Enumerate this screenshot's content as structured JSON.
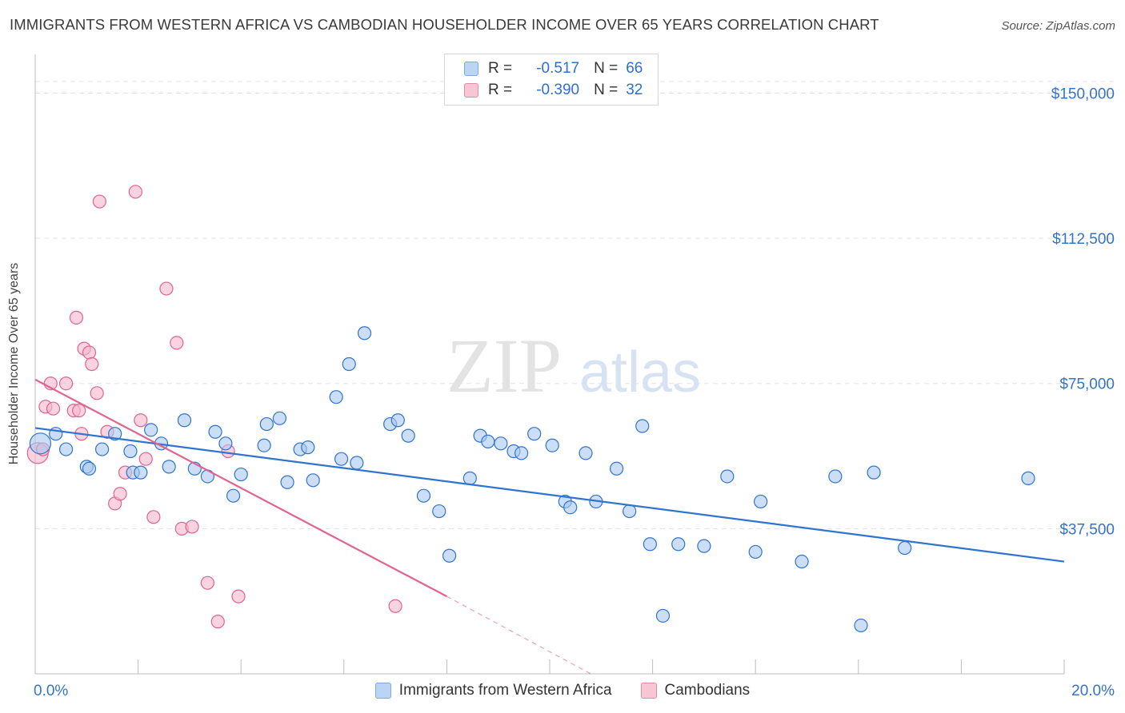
{
  "header": {
    "title": "IMMIGRANTS FROM WESTERN AFRICA VS CAMBODIAN HOUSEHOLDER INCOME OVER 65 YEARS CORRELATION CHART",
    "source": "Source: ZipAtlas.com"
  },
  "watermark": {
    "zip": "ZIP",
    "atlas": "atlas"
  },
  "stats": [
    {
      "r_label": "R =",
      "r_value": "-0.517",
      "n_label": "N =",
      "n_value": "66",
      "color": "#7ba9e6",
      "fill": "#bcd4f3"
    },
    {
      "r_label": "R =",
      "r_value": "-0.390",
      "n_label": "N =",
      "n_value": "32",
      "color": "#e88aa7",
      "fill": "#f7c6d5"
    }
  ],
  "legend": {
    "series1": "Immigrants from Western Africa",
    "series2": "Cambodians"
  },
  "chart_data": {
    "type": "scatter",
    "title": "IMMIGRANTS FROM WESTERN AFRICA VS CAMBODIAN HOUSEHOLDER INCOME OVER 65 YEARS CORRELATION CHART",
    "xlabel": "",
    "ylabel": "Householder Income Over 65 years",
    "xlim": [
      0,
      20
    ],
    "ylim": [
      0,
      160000
    ],
    "x_tick_labels": [
      "0.0%",
      "20.0%"
    ],
    "y_ticks": [
      37500,
      75000,
      112500,
      150000
    ],
    "y_tick_labels": [
      "$37,500",
      "$75,000",
      "$112,500",
      "$150,000"
    ],
    "grid": "horizontal dashed",
    "legend_position": "bottom-center",
    "colors": {
      "blue": "#2f74d0",
      "pink": "#e0648f",
      "blue_fill": "#a9c8f0",
      "pink_fill": "#f5b8cb",
      "tick_label": "#3573c9"
    },
    "series": [
      {
        "name": "Immigrants from Western Africa",
        "color": "#2f74d0",
        "x": [
          0.1,
          0.4,
          0.6,
          1.0,
          1.05,
          1.3,
          1.55,
          1.85,
          1.9,
          2.05,
          2.25,
          2.45,
          2.6,
          2.9,
          3.1,
          3.35,
          3.5,
          3.7,
          3.85,
          4.0,
          4.45,
          4.5,
          4.75,
          4.9,
          5.15,
          5.3,
          5.4,
          5.85,
          5.95,
          6.1,
          6.25,
          6.4,
          6.9,
          7.05,
          7.25,
          7.55,
          7.85,
          8.05,
          8.45,
          8.65,
          8.8,
          9.05,
          9.3,
          9.45,
          9.7,
          10.05,
          10.3,
          10.4,
          10.7,
          10.9,
          11.3,
          11.55,
          11.8,
          11.95,
          12.2,
          12.5,
          13.0,
          13.45,
          14.0,
          14.1,
          14.9,
          15.55,
          16.05,
          16.3,
          16.9,
          19.3
        ],
        "y": [
          59500,
          62000,
          58000,
          53500,
          53000,
          58000,
          62000,
          57500,
          52000,
          52000,
          63000,
          59500,
          53500,
          65500,
          53000,
          51000,
          62500,
          59500,
          46000,
          51500,
          59000,
          64500,
          66000,
          49500,
          58000,
          58500,
          50000,
          71500,
          55500,
          80000,
          54500,
          88000,
          64500,
          65500,
          61500,
          46000,
          42000,
          30500,
          50500,
          61500,
          60000,
          59500,
          57500,
          57000,
          62000,
          59000,
          44500,
          43000,
          57000,
          44500,
          53000,
          42000,
          64000,
          33500,
          15000,
          33500,
          33000,
          51000,
          31500,
          44500,
          29000,
          51000,
          12500,
          52000,
          32500,
          50500
        ]
      },
      {
        "name": "Cambodians",
        "color": "#e0648f",
        "x": [
          0.05,
          0.15,
          0.2,
          0.3,
          0.35,
          0.6,
          0.75,
          0.8,
          0.85,
          0.9,
          0.95,
          1.05,
          1.1,
          1.2,
          1.25,
          1.4,
          1.55,
          1.65,
          1.75,
          1.95,
          2.05,
          2.15,
          2.3,
          2.55,
          2.75,
          2.85,
          3.05,
          3.35,
          3.55,
          3.75,
          3.95,
          7.0
        ],
        "y": [
          57000,
          58000,
          69000,
          75000,
          68500,
          75000,
          68000,
          92000,
          68000,
          62000,
          84000,
          83000,
          80000,
          72500,
          122000,
          62500,
          44000,
          46500,
          52000,
          124500,
          65500,
          55500,
          40500,
          99500,
          85500,
          37500,
          38000,
          23500,
          13500,
          57500,
          20000,
          17500
        ]
      }
    ],
    "trendlines": [
      {
        "series": "Immigrants from Western Africa",
        "x": [
          0,
          20
        ],
        "y": [
          63500,
          29000
        ],
        "style": "solid"
      },
      {
        "series": "Cambodians",
        "x_solid": [
          0,
          8.0
        ],
        "y_solid": [
          76000,
          20000
        ],
        "x_dashed": [
          8.0,
          10.8
        ],
        "y_dashed": [
          20000,
          0
        ],
        "style": "solid then dashed"
      }
    ]
  }
}
